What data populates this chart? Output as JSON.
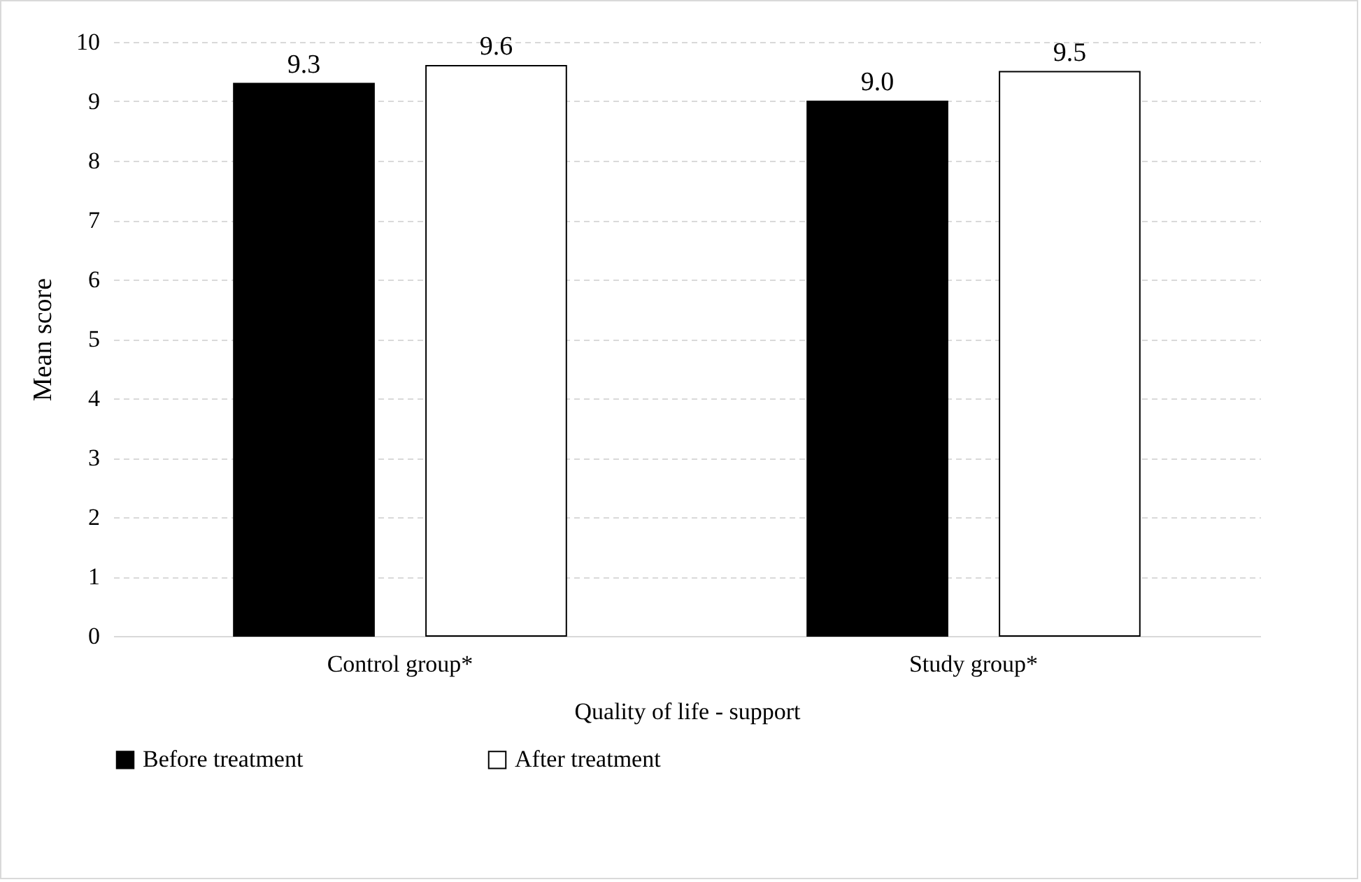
{
  "chart_data": {
    "type": "bar",
    "categories": [
      "Control group*",
      "Study group*"
    ],
    "xlabel": "Quality of life - support",
    "ylabel": "Mean score",
    "series": [
      {
        "name": "Before treatment",
        "color": "#000000",
        "values": [
          9.3,
          9.0
        ],
        "value_labels": [
          "9.3",
          "9.0"
        ]
      },
      {
        "name": "After treatment",
        "color": "#ffffff",
        "values": [
          9.6,
          9.5
        ],
        "value_labels": [
          "9.6",
          "9.5"
        ]
      }
    ],
    "ylim": [
      0,
      10
    ],
    "yticks": [
      0,
      1,
      2,
      3,
      4,
      5,
      6,
      7,
      8,
      9,
      10
    ],
    "grid": "y",
    "legend": "bottom"
  }
}
